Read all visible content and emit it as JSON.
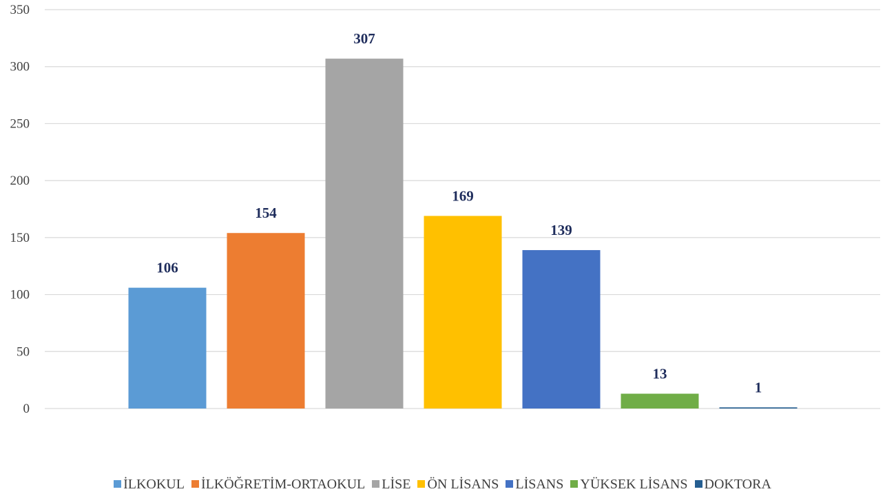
{
  "chart_data": {
    "type": "bar",
    "title": "",
    "xlabel": "",
    "ylabel": "",
    "ylim": [
      0,
      350
    ],
    "yticks": [
      "0",
      "50",
      "100",
      "150",
      "200",
      "250",
      "300",
      "350"
    ],
    "grid": true,
    "legend_position": "bottom",
    "categories": [
      "İLKOKUL",
      "İLKÖĞRETİM-ORTAOKUL",
      "LİSE",
      "ÖN LİSANS",
      "LİSANS",
      "YÜKSEK LİSANS",
      "DOKTORA"
    ],
    "values": [
      106,
      154,
      307,
      169,
      139,
      13,
      1
    ],
    "data_labels": [
      "106",
      "154",
      "307",
      "169",
      "139",
      "13",
      "1"
    ],
    "colors": [
      "#5b9bd5",
      "#ed7d31",
      "#a5a5a5",
      "#ffc000",
      "#4472c4",
      "#70ad47",
      "#255e91"
    ]
  }
}
